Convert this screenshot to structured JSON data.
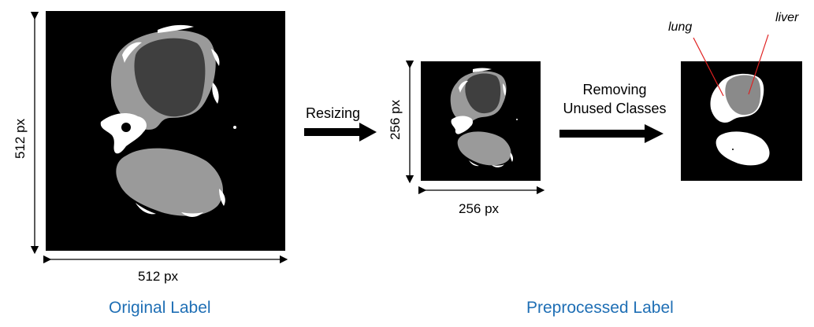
{
  "original": {
    "width_label": "512 px",
    "height_label": "512 px",
    "caption": "Original Label"
  },
  "steps": {
    "resize_label": "Resizing",
    "remove_line1": "Removing",
    "remove_line2": "Unused Classes"
  },
  "resized": {
    "width_label": "256 px",
    "height_label": "256 px"
  },
  "processed": {
    "caption": "Preprocessed Label",
    "annotations": [
      "lung",
      "liver"
    ]
  },
  "colors": {
    "caption": "#1f6fb5",
    "background": "#000000",
    "organ_light": "#9a9a9a",
    "organ_dark": "#3f3f3f",
    "annotation_line": "#e02020"
  }
}
